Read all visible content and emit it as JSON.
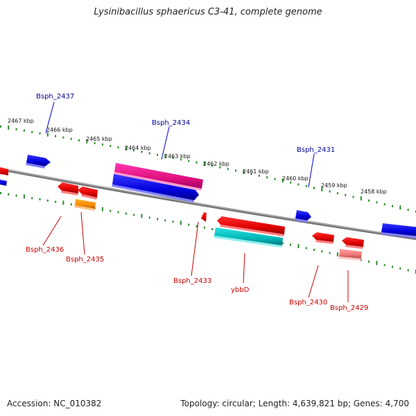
{
  "title": "Lysinibacillus sphaericus C3-41, complete genome",
  "footer": {
    "accession": "Accession: NC_010382",
    "stats": "Topology: circular; Length: 4,639,821 bp; Genes: 4,700"
  },
  "colors": {
    "backbone": "#888888",
    "tick": "#2a8a2a",
    "forward_gene": "#0000ee",
    "reverse_gene": "#ee0000",
    "label_forward": "#000099",
    "label_reverse": "#cc0000"
  },
  "kbp_labels": [
    "2467 kbp",
    "2466 kbp",
    "2465 kbp",
    "2464 kbp",
    "2463 kbp",
    "2462 kbp",
    "2461 kbp",
    "2460 kbp",
    "2459 kbp",
    "2458 kbp"
  ],
  "gene_labels": {
    "top": [
      "Bsph_2437",
      "Bsph_2434",
      "Bsph_2431"
    ],
    "bottom": [
      "Bsph_2436",
      "Bsph_2435",
      "Bsph_2433",
      "ybbD",
      "Bsph_2430",
      "Bsph_2429"
    ]
  }
}
